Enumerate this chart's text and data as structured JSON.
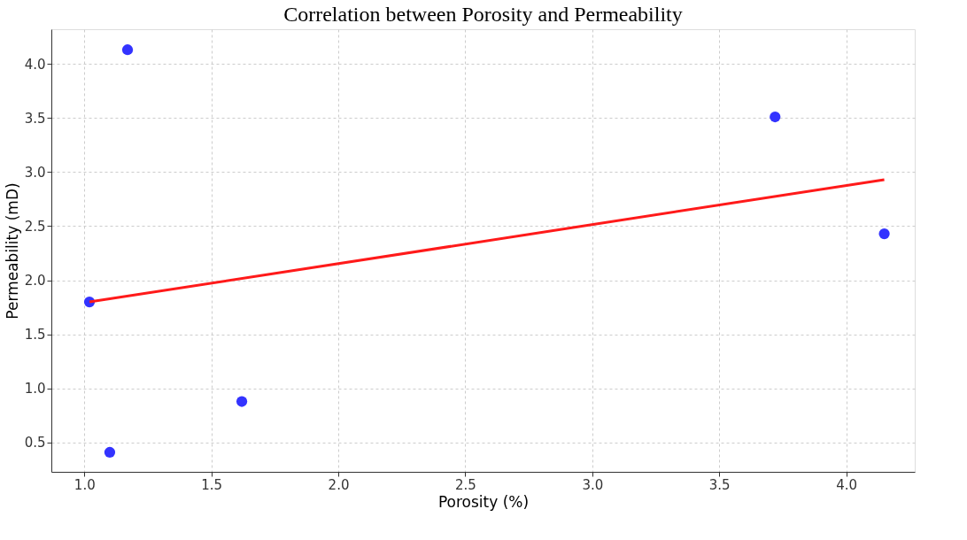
{
  "chart_data": {
    "type": "scatter",
    "title": "Correlation between Porosity and Permeability",
    "xlabel": "Porosity (%)",
    "ylabel": "Permeability (mD)",
    "x": [
      1.02,
      1.17,
      1.1,
      1.62,
      3.72,
      4.15
    ],
    "series": [
      {
        "color": "#3333ff",
        "values": [
          1.8,
          4.13,
          0.41,
          0.88,
          3.51,
          2.43
        ]
      },
      {
        "type": "line",
        "marker": "none",
        "color": "#ff1a1a",
        "x": [
          1.02,
          4.15
        ],
        "values": [
          1.8,
          2.93
        ]
      }
    ],
    "xlim": [
      0.87,
      4.27
    ],
    "ylim": [
      0.23,
      4.32
    ],
    "xticks": [
      {
        "value": 1,
        "label": "1.0"
      },
      1.5,
      {
        "value": 2,
        "label": "2.0"
      },
      2.5,
      {
        "value": 3,
        "label": "3.0"
      },
      3.5,
      {
        "value": 4,
        "label": "4.0"
      }
    ],
    "yticks": [
      0.5,
      {
        "value": 1,
        "label": "1.0"
      },
      1.5,
      {
        "value": 2,
        "label": "2.0"
      },
      2.5,
      {
        "value": 3,
        "label": "3.0"
      },
      3.5,
      {
        "value": 4,
        "label": "4.0"
      }
    ],
    "grid": true,
    "marker": "circle"
  }
}
